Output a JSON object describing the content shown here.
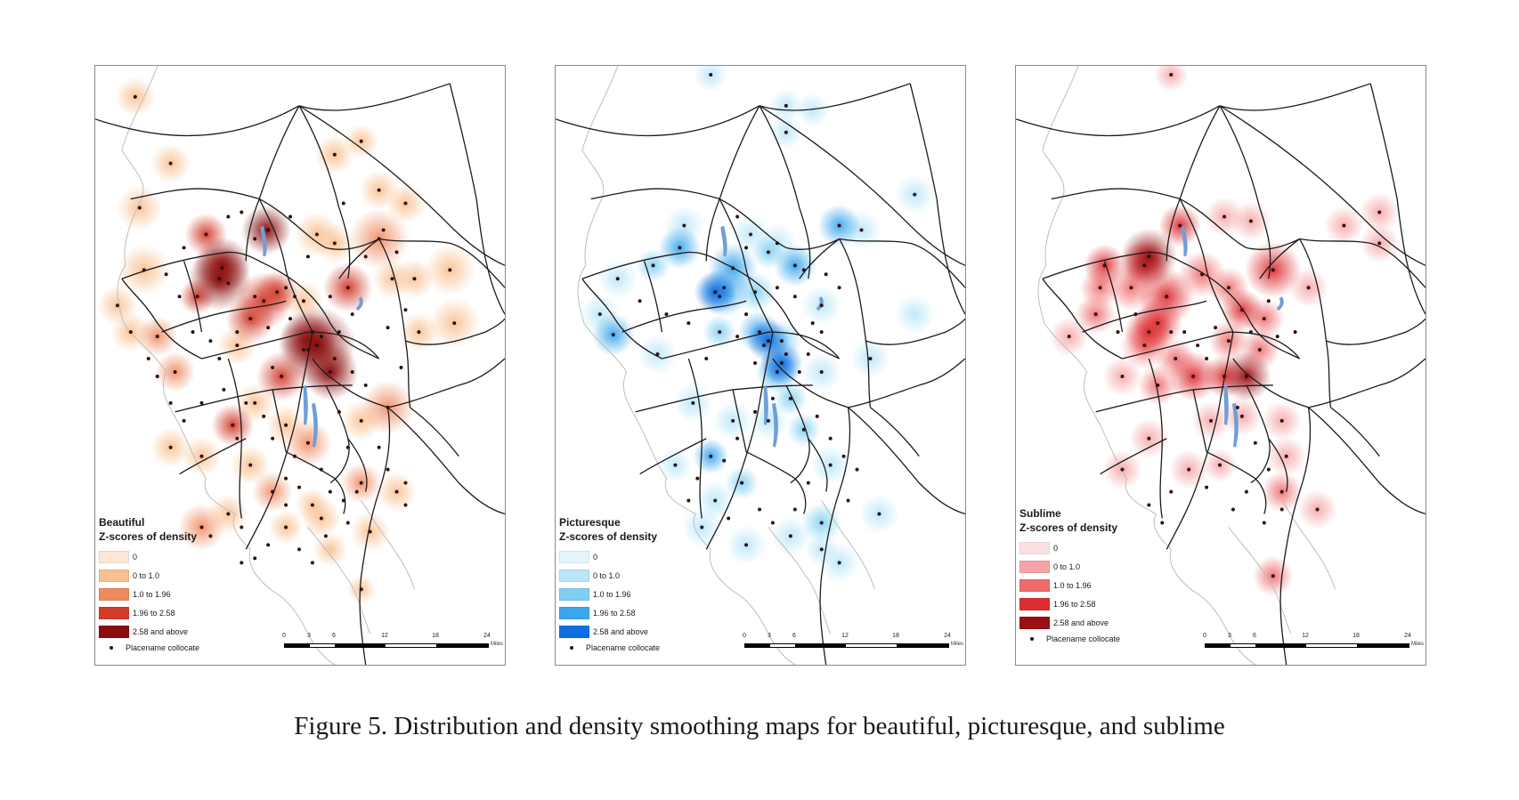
{
  "caption": "Figure 5. Distribution and density smoothing maps for beautiful, picturesque, and sublime",
  "panels": [
    {
      "key": "beautiful",
      "title": "Beautiful",
      "legend_subtitle": "Z-scores of density",
      "classes": [
        "0",
        "0 to 1.0",
        "1.0 to 1.96",
        "1.96 to 2.58",
        "2.58 and above"
      ],
      "colors": [
        "#fde8d6",
        "#f9bf8e",
        "#ef8a5e",
        "#d23a2a",
        "#8b0d0d"
      ],
      "point_label": "Placename collocate",
      "scale_ticks": [
        "0",
        "3",
        "6",
        "12",
        "18",
        "24"
      ],
      "scale_unit": "Miles"
    },
    {
      "key": "picturesque",
      "title": "Picturesque",
      "legend_subtitle": "Z-scores of density",
      "classes": [
        "0",
        "0 to 1.0",
        "1.0 to 1.96",
        "1.96 to 2.58",
        "2.58 and above"
      ],
      "colors": [
        "#e4f5fd",
        "#b9e6f9",
        "#7ecff2",
        "#3aa6ec",
        "#0f6fe0"
      ],
      "point_label": "Placename collocate",
      "scale_ticks": [
        "0",
        "3",
        "6",
        "12",
        "18",
        "24"
      ],
      "scale_unit": "Miles"
    },
    {
      "key": "sublime",
      "title": "Sublime",
      "legend_subtitle": "Z-scores of density",
      "classes": [
        "0",
        "0 to 1.0",
        "1.0 to 1.96",
        "1.96 to 2.58",
        "2.58 and above"
      ],
      "colors": [
        "#fce1e3",
        "#f6a4a7",
        "#ee6b6c",
        "#dd2e33",
        "#9c0f12"
      ],
      "point_label": "Placename collocate",
      "scale_ticks": [
        "0",
        "3",
        "6",
        "12",
        "18",
        "24"
      ],
      "scale_unit": "Miles"
    }
  ]
}
